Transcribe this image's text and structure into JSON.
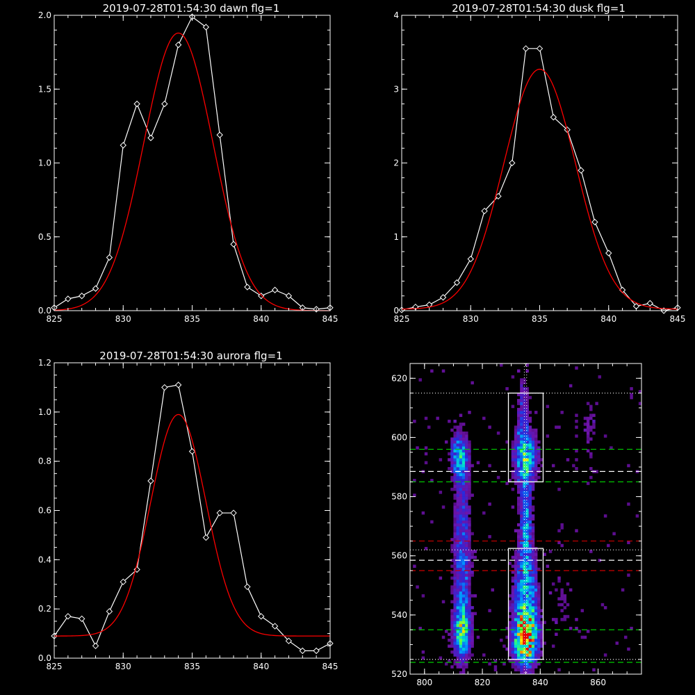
{
  "chart_data": [
    {
      "type": "line",
      "title": "2019-07-28T01:54:30 dawn flg=1",
      "xlim": [
        825,
        845
      ],
      "ylim": [
        0,
        2.0
      ],
      "xticks": [
        "825",
        "830",
        "835",
        "840",
        "845"
      ],
      "yticks": [
        "0.0",
        "0.5",
        "1.0",
        "1.5",
        "2.0"
      ],
      "grid": false,
      "series": [
        {
          "color": "#ffffff",
          "marker": "diamond",
          "x": [
            825,
            826,
            827,
            828,
            829,
            830,
            831,
            832,
            833,
            834,
            835,
            836,
            837,
            838,
            839,
            840,
            841,
            842,
            843,
            844,
            845
          ],
          "y": [
            0.02,
            0.08,
            0.1,
            0.15,
            0.36,
            1.12,
            1.4,
            1.17,
            1.4,
            1.8,
            1.99,
            1.92,
            1.19,
            0.45,
            0.16,
            0.1,
            0.14,
            0.1,
            0.02,
            0.01,
            0.02
          ]
        },
        {
          "color": "#ff0000",
          "marker": "none",
          "gauss": {
            "amp": 1.88,
            "mu": 834.0,
            "sigma": 2.5,
            "base": 0.0
          }
        }
      ]
    },
    {
      "type": "line",
      "title": "2019-07-28T01:54:30 dusk flg=1",
      "xlim": [
        825,
        845
      ],
      "ylim": [
        0,
        4
      ],
      "xticks": [
        "825",
        "830",
        "835",
        "840",
        "845"
      ],
      "yticks": [
        "0",
        "1",
        "2",
        "3",
        "4"
      ],
      "grid": false,
      "series": [
        {
          "color": "#ffffff",
          "marker": "diamond",
          "x": [
            825,
            826,
            827,
            828,
            829,
            830,
            831,
            832,
            833,
            834,
            835,
            836,
            837,
            838,
            839,
            840,
            841,
            842,
            843,
            844,
            845
          ],
          "y": [
            0.01,
            0.05,
            0.08,
            0.18,
            0.38,
            0.7,
            1.35,
            1.55,
            2.0,
            3.55,
            3.55,
            2.62,
            2.45,
            1.9,
            1.2,
            0.78,
            0.28,
            0.06,
            0.1,
            0.0,
            0.04
          ]
        },
        {
          "color": "#ff0000",
          "marker": "none",
          "gauss": {
            "amp": 3.25,
            "mu": 835.0,
            "sigma": 2.6,
            "base": 0.02
          }
        }
      ]
    },
    {
      "type": "line",
      "title": "2019-07-28T01:54:30 aurora flg=1",
      "xlim": [
        825,
        845
      ],
      "ylim": [
        0,
        1.2
      ],
      "xticks": [
        "825",
        "830",
        "835",
        "840",
        "845"
      ],
      "yticks": [
        "0.0",
        "0.2",
        "0.4",
        "0.6",
        "0.8",
        "1.0",
        "1.2"
      ],
      "grid": false,
      "series": [
        {
          "color": "#ffffff",
          "marker": "diamond",
          "x": [
            825,
            826,
            827,
            828,
            829,
            830,
            831,
            832,
            833,
            834,
            835,
            836,
            837,
            838,
            839,
            840,
            841,
            842,
            843,
            844,
            845
          ],
          "y": [
            0.09,
            0.17,
            0.16,
            0.05,
            0.19,
            0.31,
            0.36,
            0.72,
            1.1,
            1.11,
            0.84,
            0.49,
            0.59,
            0.59,
            0.29,
            0.17,
            0.13,
            0.07,
            0.03,
            0.03,
            0.06
          ]
        },
        {
          "color": "#ff0000",
          "marker": "none",
          "gauss": {
            "amp": 0.9,
            "mu": 834.0,
            "sigma": 2.0,
            "base": 0.09
          }
        }
      ]
    },
    {
      "type": "heatmap",
      "title": "",
      "xlim": [
        795,
        875
      ],
      "ylim": [
        520,
        625
      ],
      "xticks": [
        "800",
        "820",
        "840",
        "860"
      ],
      "yticks": [
        "520",
        "540",
        "560",
        "580",
        "600",
        "620"
      ],
      "colormap": "rainbow-on-black",
      "sources": [
        {
          "x": 835,
          "y": 532,
          "sx": 2.8,
          "sy": 6,
          "amp": 1.0
        },
        {
          "x": 835,
          "y": 548,
          "sx": 2.8,
          "sy": 10,
          "amp": 0.5
        },
        {
          "x": 835,
          "y": 572,
          "sx": 1.4,
          "sy": 10,
          "amp": 0.45
        },
        {
          "x": 835,
          "y": 593,
          "sx": 2.6,
          "sy": 6,
          "amp": 0.6
        },
        {
          "x": 834,
          "y": 608,
          "sx": 1.5,
          "sy": 8,
          "amp": 0.25
        },
        {
          "x": 813,
          "y": 535,
          "sx": 2.0,
          "sy": 7,
          "amp": 0.65
        },
        {
          "x": 813,
          "y": 555,
          "sx": 2.0,
          "sy": 12,
          "amp": 0.3
        },
        {
          "x": 812,
          "y": 594,
          "sx": 2.0,
          "sy": 5,
          "amp": 0.5
        },
        {
          "x": 813,
          "y": 578,
          "sx": 2.0,
          "sy": 12,
          "amp": 0.22
        },
        {
          "x": 857,
          "y": 605,
          "sx": 1.5,
          "sy": 6,
          "amp": 0.15
        },
        {
          "x": 848,
          "y": 545,
          "sx": 3,
          "sy": 10,
          "amp": 0.1
        }
      ],
      "hlines": [
        {
          "y": 615,
          "color": "#ffffff",
          "style": "dotted"
        },
        {
          "y": 596,
          "color": "#00cc00",
          "style": "dashed"
        },
        {
          "y": 588.5,
          "color": "#ffffff",
          "style": "dashed"
        },
        {
          "y": 585,
          "color": "#00cc00",
          "style": "dashed"
        },
        {
          "y": 565,
          "color": "#cc0000",
          "style": "dashed"
        },
        {
          "y": 562,
          "color": "#ffffff",
          "style": "dotted"
        },
        {
          "y": 558.5,
          "color": "#ffffff",
          "style": "dashed"
        },
        {
          "y": 555,
          "color": "#cc0000",
          "style": "dashed"
        },
        {
          "y": 535,
          "color": "#00cc00",
          "style": "dashed"
        },
        {
          "y": 525,
          "color": "#ffffff",
          "style": "dotted"
        },
        {
          "y": 524,
          "color": "#00cc00",
          "style": "dashed"
        }
      ],
      "vlines": [
        {
          "x": 834.5,
          "color": "#ffffff",
          "style": "dotted"
        },
        {
          "x": 835.3,
          "color": "#ffffff",
          "style": "dotted"
        }
      ],
      "boxes": [
        {
          "x0": 829,
          "x1": 841,
          "y0": 585,
          "y1": 615
        },
        {
          "x0": 829,
          "x1": 841,
          "y0": 525,
          "y1": 562.5
        }
      ]
    }
  ]
}
